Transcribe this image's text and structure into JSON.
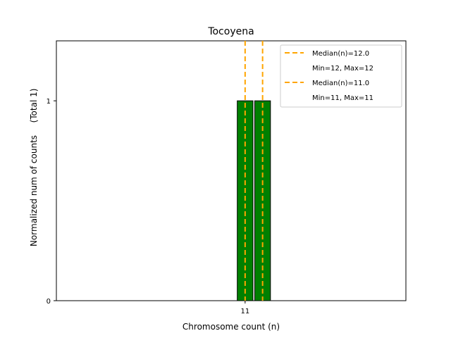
{
  "chart_data": {
    "type": "bar",
    "title": "Tocoyena",
    "xlabel": "Chromosome count (n)",
    "ylabel": "Normalized num of counts",
    "ylabel_total": "(Total 1)",
    "x_ticks": [
      {
        "value": 11,
        "label": "11"
      }
    ],
    "y_ticks": [
      {
        "value": 0,
        "label": "0"
      },
      {
        "value": 1,
        "label": "1"
      }
    ],
    "xlim": [
      0.2,
      20.2
    ],
    "ylim": [
      0,
      1.3
    ],
    "grid": false,
    "legend_position": "top-right",
    "bars": [
      {
        "x": 11,
        "value": 1,
        "color": "#008000"
      },
      {
        "x": 12,
        "value": 1,
        "color": "#008000"
      }
    ],
    "median_lines": [
      {
        "x": 11,
        "color": "#ffa500"
      },
      {
        "x": 12,
        "color": "#ffa500"
      }
    ],
    "legend": [
      {
        "line": "Median(n)=12.0",
        "sub": "Min=12, Max=12",
        "color": "#ffa500"
      },
      {
        "line": "Median(n)=11.0",
        "sub": "Min=11, Max=11",
        "color": "#ffa500"
      }
    ]
  }
}
